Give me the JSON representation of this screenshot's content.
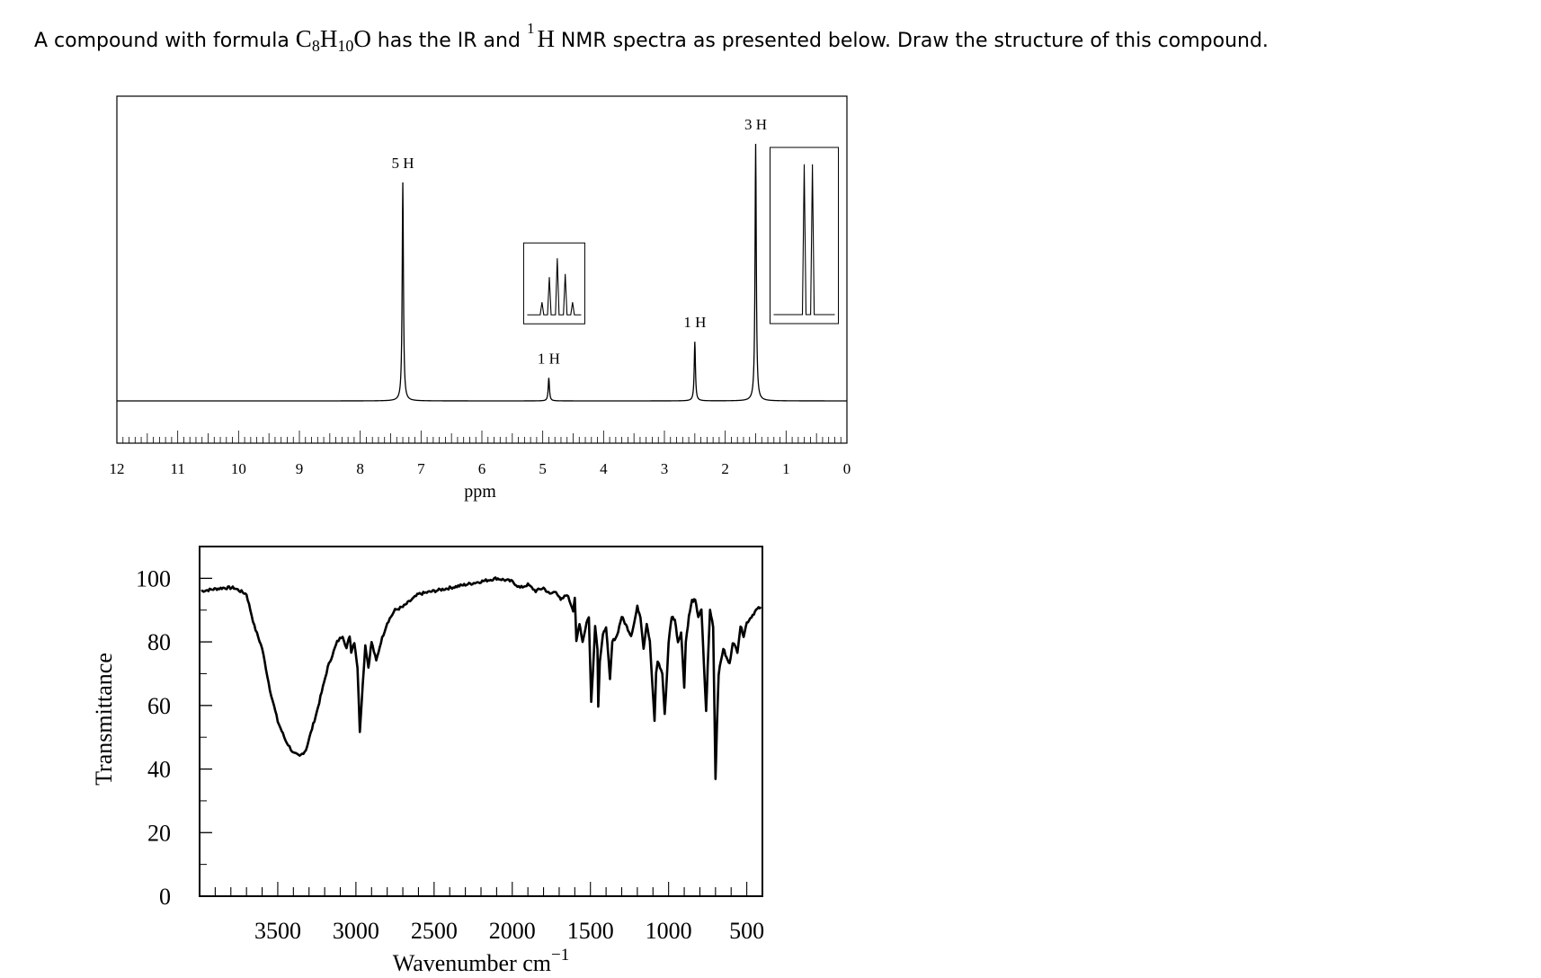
{
  "question": {
    "part1": "A compound with formula ",
    "c": "C",
    "c_sub": "8",
    "h": "H",
    "h_sub": "10",
    "o": "O",
    "part2": " has the IR and ",
    "nmr_sup": "1",
    "nmr_h": "H",
    "part3": " NMR spectra as presented below. Draw the structure of this compound."
  },
  "chart_data": [
    {
      "type": "line",
      "spectrum": "1H NMR",
      "xlabel": "ppm",
      "xlim": [
        12,
        0
      ],
      "x_ticks": [
        12,
        11,
        10,
        9,
        8,
        7,
        6,
        5,
        4,
        3,
        2,
        1,
        0
      ],
      "peaks": [
        {
          "ppm": 7.3,
          "integration": "5 H",
          "height": 0.85
        },
        {
          "ppm": 4.9,
          "integration": "1 H",
          "height": 0.09,
          "inset": "quartet"
        },
        {
          "ppm": 2.5,
          "integration": "1 H",
          "height": 0.23
        },
        {
          "ppm": 1.5,
          "integration": "3 H",
          "height": 1.0,
          "inset": "doublet"
        }
      ],
      "baseline": 0
    },
    {
      "type": "line",
      "spectrum": "IR",
      "xlabel": "Wavenumber cm",
      "xlabel_sup": "−1",
      "ylabel": "Transmittance",
      "xlim": [
        4000,
        400
      ],
      "ylim": [
        0,
        110
      ],
      "x_ticks": [
        3500,
        3000,
        2500,
        2000,
        1500,
        1000,
        500
      ],
      "y_ticks": [
        0,
        20,
        40,
        60,
        80,
        100
      ],
      "points": [
        [
          3990,
          96
        ],
        [
          3850,
          97
        ],
        [
          3780,
          97
        ],
        [
          3700,
          95
        ],
        [
          3650,
          85
        ],
        [
          3600,
          78
        ],
        [
          3550,
          65
        ],
        [
          3500,
          55
        ],
        [
          3450,
          49
        ],
        [
          3400,
          45
        ],
        [
          3360,
          44
        ],
        [
          3320,
          46
        ],
        [
          3250,
          58
        ],
        [
          3180,
          72
        ],
        [
          3120,
          80
        ],
        [
          3085,
          82
        ],
        [
          3060,
          78
        ],
        [
          3040,
          82
        ],
        [
          3030,
          77
        ],
        [
          3010,
          80
        ],
        [
          2990,
          72
        ],
        [
          2975,
          52
        ],
        [
          2965,
          60
        ],
        [
          2940,
          79
        ],
        [
          2920,
          72
        ],
        [
          2900,
          80
        ],
        [
          2870,
          74
        ],
        [
          2840,
          80
        ],
        [
          2800,
          86
        ],
        [
          2750,
          90
        ],
        [
          2700,
          91
        ],
        [
          2600,
          95
        ],
        [
          2500,
          96
        ],
        [
          2400,
          97
        ],
        [
          2300,
          98
        ],
        [
          2200,
          99
        ],
        [
          2100,
          100
        ],
        [
          2000,
          99
        ],
        [
          1950,
          97
        ],
        [
          1900,
          98
        ],
        [
          1850,
          96
        ],
        [
          1800,
          97
        ],
        [
          1760,
          95
        ],
        [
          1720,
          96
        ],
        [
          1690,
          93
        ],
        [
          1650,
          95
        ],
        [
          1610,
          90
        ],
        [
          1600,
          94
        ],
        [
          1590,
          80
        ],
        [
          1570,
          86
        ],
        [
          1550,
          80
        ],
        [
          1525,
          86
        ],
        [
          1510,
          88
        ],
        [
          1495,
          61
        ],
        [
          1485,
          70
        ],
        [
          1470,
          85
        ],
        [
          1455,
          78
        ],
        [
          1450,
          60
        ],
        [
          1440,
          74
        ],
        [
          1420,
          82
        ],
        [
          1400,
          85
        ],
        [
          1375,
          68
        ],
        [
          1360,
          80
        ],
        [
          1330,
          82
        ],
        [
          1300,
          88
        ],
        [
          1280,
          86
        ],
        [
          1260,
          84
        ],
        [
          1240,
          82
        ],
        [
          1220,
          86
        ],
        [
          1200,
          91
        ],
        [
          1180,
          88
        ],
        [
          1160,
          78
        ],
        [
          1140,
          86
        ],
        [
          1120,
          80
        ],
        [
          1090,
          55
        ],
        [
          1080,
          70
        ],
        [
          1070,
          74
        ],
        [
          1040,
          70
        ],
        [
          1025,
          57
        ],
        [
          1010,
          70
        ],
        [
          1000,
          80
        ],
        [
          980,
          88
        ],
        [
          960,
          87
        ],
        [
          940,
          80
        ],
        [
          920,
          83
        ],
        [
          900,
          66
        ],
        [
          890,
          80
        ],
        [
          870,
          88
        ],
        [
          850,
          93
        ],
        [
          830,
          93
        ],
        [
          810,
          88
        ],
        [
          790,
          90
        ],
        [
          775,
          74
        ],
        [
          760,
          58
        ],
        [
          750,
          72
        ],
        [
          735,
          90
        ],
        [
          715,
          85
        ],
        [
          700,
          37
        ],
        [
          690,
          55
        ],
        [
          680,
          70
        ],
        [
          650,
          78
        ],
        [
          630,
          75
        ],
        [
          610,
          73
        ],
        [
          590,
          80
        ],
        [
          560,
          77
        ],
        [
          540,
          85
        ],
        [
          520,
          82
        ],
        [
          500,
          86
        ],
        [
          470,
          88
        ],
        [
          440,
          90
        ],
        [
          410,
          91
        ]
      ]
    }
  ]
}
